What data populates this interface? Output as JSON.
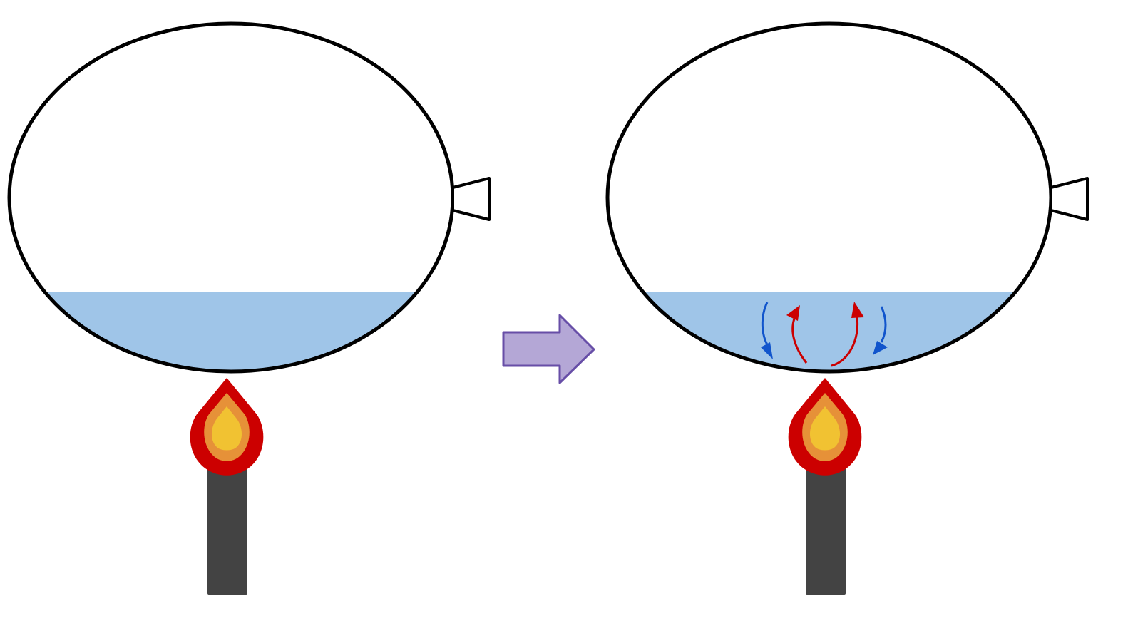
{
  "colors": {
    "background": "#FFFFFF",
    "outline": "#000000",
    "water": "#9FC5E8",
    "burner": "#434343",
    "flame_outer": "#CC0000",
    "flame_middle": "#E69138",
    "flame_inner": "#F1C232",
    "arrow_fill": "#B4A7D6",
    "arrow_stroke": "#674EA7",
    "hot_current": "#CC0000",
    "cold_current": "#1155CC"
  },
  "icons": {
    "flame": "flame-icon",
    "burner": "burner-icon",
    "transition": "right-arrow-icon"
  },
  "scenes": [
    {
      "name": "before-heating",
      "convection_currents": false
    },
    {
      "name": "after-heating",
      "convection_currents": true
    }
  ]
}
